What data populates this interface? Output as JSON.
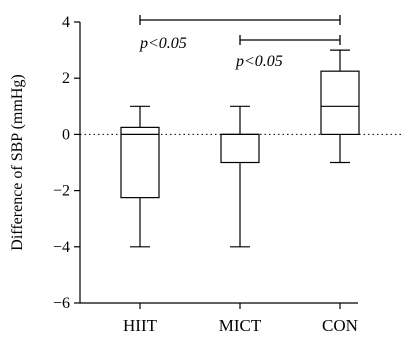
{
  "chart_data": {
    "type": "box",
    "ylabel": "Difference of SBP (mmHg)",
    "ylim": [
      -6,
      4
    ],
    "yticks": [
      4,
      2,
      0,
      -2,
      -4,
      -6
    ],
    "ytick_labels": [
      "4",
      "2",
      "0",
      "−2",
      "−4",
      "−6"
    ],
    "categories": [
      "HIIT",
      "MICT",
      "CON"
    ],
    "boxes": [
      {
        "min": -4,
        "q1": -2.25,
        "median": 0,
        "q3": 0.25,
        "max": 1
      },
      {
        "min": -4,
        "q1": -1,
        "median": 0,
        "q3": 0,
        "max": 1
      },
      {
        "min": -1,
        "q1": 0,
        "median": 1,
        "q3": 2.25,
        "max": 3
      }
    ],
    "reference_line": {
      "y": 0,
      "style": "dotted"
    },
    "significance": [
      {
        "from": "HIIT",
        "to": "CON",
        "label": "p<0.05"
      },
      {
        "from": "MICT",
        "to": "CON",
        "label": "p<0.05"
      }
    ]
  }
}
